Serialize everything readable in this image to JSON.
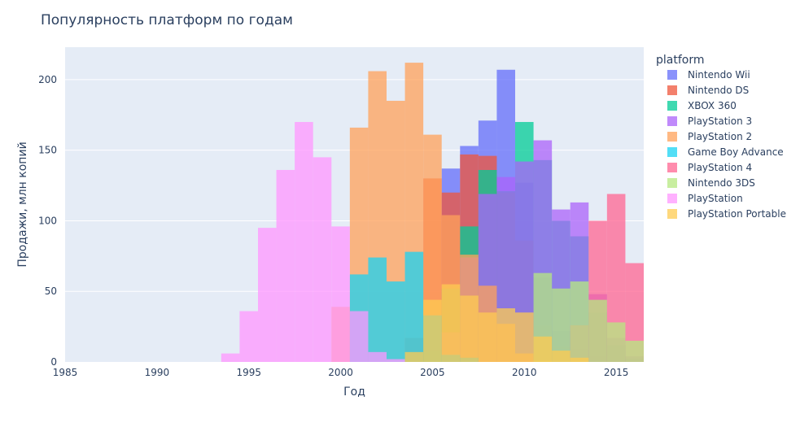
{
  "chart_data": {
    "type": "bar",
    "mode": "overlay",
    "title": "Популярность платформ по годам",
    "xlabel": "Год",
    "ylabel": "Продажи, млн копий",
    "xlim": [
      1985,
      2016.5
    ],
    "ylim": [
      0,
      223
    ],
    "x_ticks": [
      "1985",
      "1990",
      "1995",
      "2000",
      "2005",
      "2010",
      "2015"
    ],
    "y_ticks": [
      "0",
      "50",
      "100",
      "150",
      "200"
    ],
    "grid": true,
    "legend_title": "platform",
    "legend_position": "right",
    "series": [
      {
        "name": "Nintendo Wii",
        "color": "#636efa",
        "points": [
          [
            2006,
            137
          ],
          [
            2007,
            153
          ],
          [
            2008,
            171
          ],
          [
            2009,
            207
          ],
          [
            2010,
            127
          ],
          [
            2011,
            60
          ],
          [
            2012,
            22
          ],
          [
            2013,
            9
          ],
          [
            2014,
            4
          ],
          [
            2015,
            1
          ],
          [
            2016,
            0
          ]
        ]
      },
      {
        "name": "Nintendo DS",
        "color": "#EF553B",
        "points": [
          [
            2004,
            17
          ],
          [
            2005,
            130
          ],
          [
            2006,
            120
          ],
          [
            2007,
            147
          ],
          [
            2008,
            146
          ],
          [
            2009,
            120
          ],
          [
            2010,
            86
          ],
          [
            2011,
            26
          ],
          [
            2012,
            11
          ],
          [
            2013,
            2
          ]
        ]
      },
      {
        "name": "XBOX 360",
        "color": "#00cc96",
        "points": [
          [
            2005,
            8
          ],
          [
            2006,
            52
          ],
          [
            2007,
            96
          ],
          [
            2008,
            136
          ],
          [
            2009,
            121
          ],
          [
            2010,
            170
          ],
          [
            2011,
            143
          ],
          [
            2012,
            100
          ],
          [
            2013,
            89
          ],
          [
            2014,
            35
          ],
          [
            2015,
            12
          ],
          [
            2016,
            2
          ]
        ]
      },
      {
        "name": "PlayStation 3",
        "color": "#ab63fa",
        "points": [
          [
            2006,
            21
          ],
          [
            2007,
            74
          ],
          [
            2008,
            119
          ],
          [
            2009,
            131
          ],
          [
            2010,
            142
          ],
          [
            2011,
            157
          ],
          [
            2012,
            108
          ],
          [
            2013,
            113
          ],
          [
            2014,
            48
          ],
          [
            2015,
            17
          ],
          [
            2016,
            4
          ]
        ]
      },
      {
        "name": "PlayStation 2",
        "color": "#FFA15A",
        "points": [
          [
            2000,
            39
          ],
          [
            2001,
            166
          ],
          [
            2002,
            206
          ],
          [
            2003,
            185
          ],
          [
            2004,
            212
          ],
          [
            2005,
            161
          ],
          [
            2006,
            104
          ],
          [
            2007,
            76
          ],
          [
            2008,
            54
          ],
          [
            2009,
            27
          ],
          [
            2010,
            6
          ],
          [
            2011,
            1
          ]
        ]
      },
      {
        "name": "Game Boy Advance",
        "color": "#19d3f3",
        "points": [
          [
            2000,
            0
          ],
          [
            2001,
            62
          ],
          [
            2002,
            74
          ],
          [
            2003,
            57
          ],
          [
            2004,
            78
          ],
          [
            2005,
            33
          ],
          [
            2006,
            5
          ],
          [
            2007,
            3
          ]
        ]
      },
      {
        "name": "PlayStation 4",
        "color": "#FF6692",
        "points": [
          [
            2013,
            26
          ],
          [
            2014,
            100
          ],
          [
            2015,
            119
          ],
          [
            2016,
            70
          ]
        ]
      },
      {
        "name": "Nintendo 3DS",
        "color": "#B6E880",
        "points": [
          [
            2011,
            63
          ],
          [
            2012,
            52
          ],
          [
            2013,
            57
          ],
          [
            2014,
            44
          ],
          [
            2015,
            28
          ],
          [
            2016,
            15
          ]
        ]
      },
      {
        "name": "PlayStation",
        "color": "#FF97FF",
        "points": [
          [
            1994,
            6
          ],
          [
            1995,
            36
          ],
          [
            1996,
            95
          ],
          [
            1997,
            136
          ],
          [
            1998,
            170
          ],
          [
            1999,
            145
          ],
          [
            2000,
            96
          ],
          [
            2001,
            36
          ],
          [
            2002,
            7
          ],
          [
            2003,
            2
          ]
        ]
      },
      {
        "name": "PlayStation Portable",
        "color": "#FECB52",
        "points": [
          [
            2004,
            7
          ],
          [
            2005,
            44
          ],
          [
            2006,
            55
          ],
          [
            2007,
            47
          ],
          [
            2008,
            35
          ],
          [
            2009,
            38
          ],
          [
            2010,
            35
          ],
          [
            2011,
            18
          ],
          [
            2012,
            8
          ],
          [
            2013,
            3
          ]
        ]
      }
    ]
  }
}
